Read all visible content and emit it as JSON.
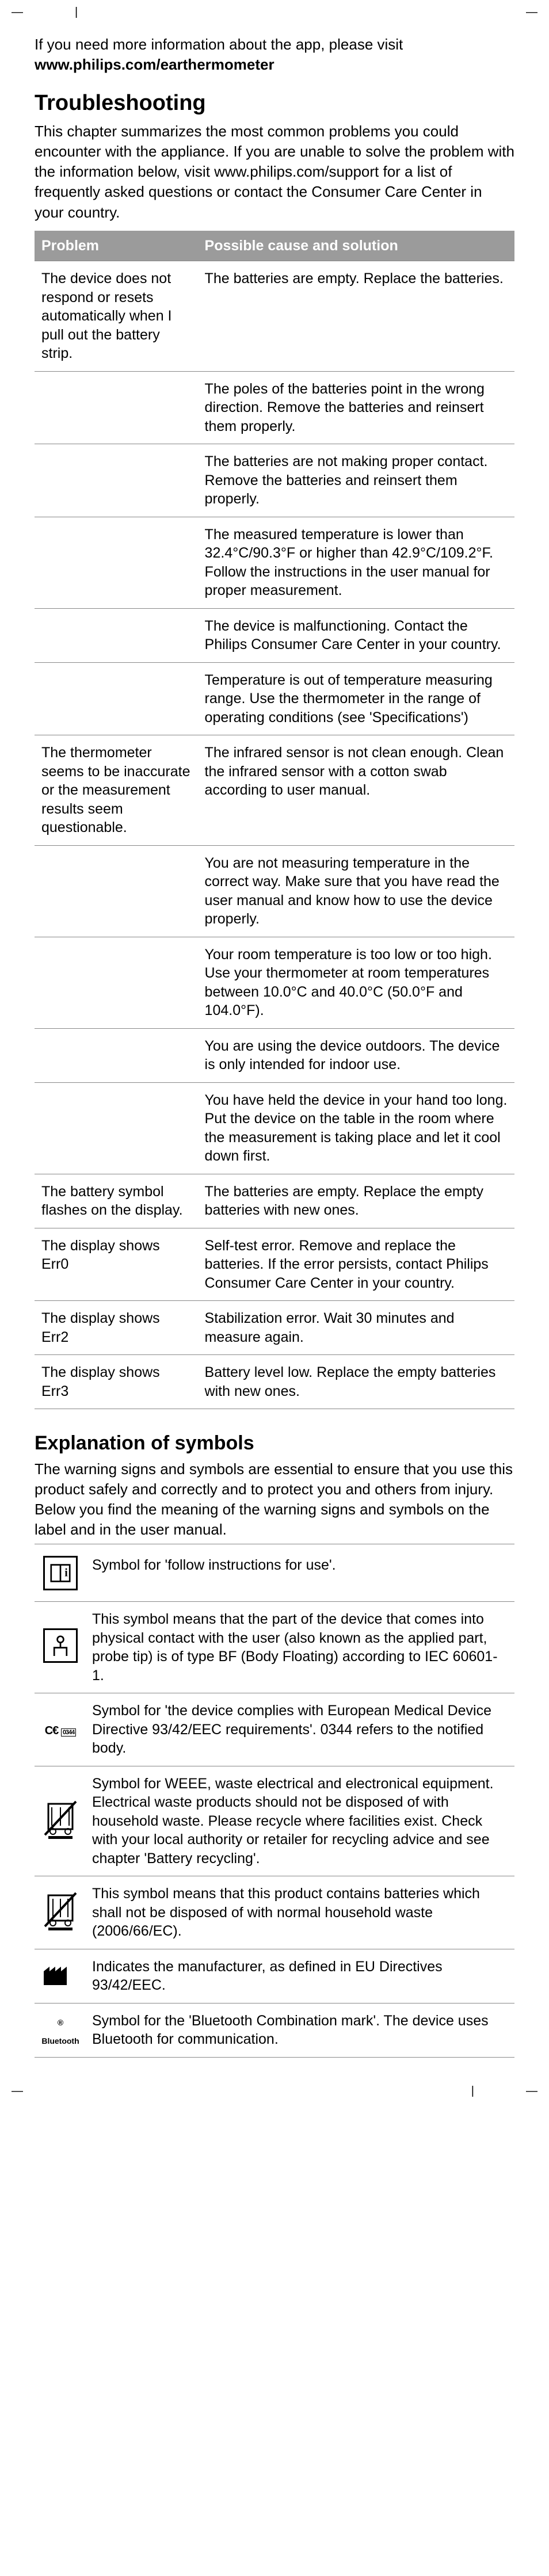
{
  "intro": {
    "line1": "If you need more information about the app, please visit ",
    "url": "www.philips.com/earthermometer"
  },
  "troubleshooting": {
    "heading": "Troubleshooting",
    "para": "This chapter summarizes the most common problems you could encounter with the appliance. If you are unable to solve the problem with the information below, visit www.philips.com/support for a list of frequently asked questions or contact the Consumer Care Center in your country.",
    "header_problem": "Problem",
    "header_cause": "Possible cause and solution",
    "rows": [
      {
        "problem": "The device does not respond or resets automatically when I pull out the battery strip.",
        "cause": "The batteries are empty. Replace the batteries."
      },
      {
        "problem": "",
        "cause": "The poles of the batteries point in the wrong direction. Remove the batteries and reinsert them properly."
      },
      {
        "problem": "",
        "cause": "The batteries are not making proper contact. Remove the batteries and reinsert them properly."
      },
      {
        "problem": "",
        "cause": "The measured temperature is lower than 32.4°C/90.3°F or higher than 42.9°C/109.2°F. Follow the instructions in the user manual for proper measurement."
      },
      {
        "problem": "",
        "cause": "The device is malfunctioning. Contact the Philips Consumer Care Center in your country."
      },
      {
        "problem": "",
        "cause": "Temperature is out of temperature measuring range. Use the thermometer in the range of operating conditions (see 'Specifications')"
      },
      {
        "problem": "The thermometer seems to be inaccurate or the measurement results seem questionable.",
        "cause": "The infrared sensor is not clean enough. Clean the infrared sensor with a cotton swab according to user manual."
      },
      {
        "problem": "",
        "cause": "You are not measuring temperature in the correct way. Make sure that you have read the user manual and know how to use the device properly."
      },
      {
        "problem": "",
        "cause": "Your room temperature is too low or too high. Use your thermometer at room temperatures between 10.0°C and 40.0°C (50.0°F and 104.0°F)."
      },
      {
        "problem": "",
        "cause": "You are using the device outdoors. The device is only intended for indoor use."
      },
      {
        "problem": "",
        "cause": "You have held the device in your hand too long. Put the device on the table in the room where the measurement is taking place and let it cool down first."
      },
      {
        "problem": "The battery symbol flashes on the display.",
        "cause": "The batteries are empty. Replace the empty batteries with new ones."
      },
      {
        "problem": "The display shows Err0",
        "cause": "Self-test error. Remove and replace the batteries. If the error persists, contact Philips Consumer Care Center in your country."
      },
      {
        "problem": "The display shows Err2",
        "cause": "Stabilization error. Wait 30 minutes and measure again."
      },
      {
        "problem": "The display shows Err3",
        "cause": "Battery level low. Replace the empty batteries with new ones."
      }
    ]
  },
  "symbols": {
    "heading": "Explanation of symbols",
    "intro": "The warning signs and symbols are essential to ensure that you use this product safely and correctly and to protect you and others from injury. Below you find the meaning of the warning signs and symbols on the label and in the user manual.",
    "rows": [
      {
        "icon": "instructions",
        "text": "Symbol for 'follow instructions for use'."
      },
      {
        "icon": "bf",
        "text": "This symbol means that the part of the device that comes into physical contact with the user (also known as the applied part, probe tip) is of type BF (Body Floating) according to IEC 60601-1."
      },
      {
        "icon": "ce",
        "text": "Symbol for 'the device complies with European Medical Device Directive 93/42/EEC requirements'. 0344 refers to the notified body."
      },
      {
        "icon": "weee",
        "text": "Symbol for WEEE, waste electrical and electronical equipment. Electrical waste products should not be disposed of with household waste. Please recycle where facilities exist. Check with your local authority or retailer for recycling advice and see chapter 'Battery recycling'."
      },
      {
        "icon": "battery",
        "text": "This symbol means that this product contains batteries which shall not be disposed of with normal household waste (2006/66/EC)."
      },
      {
        "icon": "manufacturer",
        "text": "Indicates the manufacturer, as defined in EU Directives 93/42/EEC."
      },
      {
        "icon": "bluetooth",
        "text": "Symbol for the 'Bluetooth Combination mark'. The device uses Bluetooth for communication."
      }
    ]
  }
}
